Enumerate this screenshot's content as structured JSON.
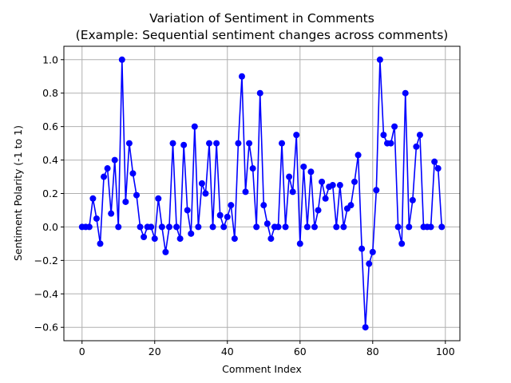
{
  "chart_data": {
    "type": "line",
    "title": "Variation of Sentiment in Comments",
    "subtitle": "(Example: Sequential sentiment changes across comments)",
    "xlabel": "Comment Index",
    "ylabel": "Sentiment Polarity (-1 to 1)",
    "xlim": [
      -5,
      104
    ],
    "ylim": [
      -0.68,
      1.08
    ],
    "xticks": [
      0,
      20,
      40,
      60,
      80,
      100
    ],
    "yticks": [
      -0.6,
      -0.4,
      -0.2,
      0.0,
      0.2,
      0.4,
      0.6,
      0.8,
      1.0
    ],
    "ytick_labels": [
      "−0.6",
      "−0.4",
      "−0.2",
      "0.0",
      "0.2",
      "0.4",
      "0.6",
      "0.8",
      "1.0"
    ],
    "grid": true,
    "color": "#0000ff",
    "marker": "circle",
    "series": [
      {
        "x": [
          0,
          1,
          2,
          3,
          4,
          5,
          6,
          7,
          8,
          9,
          10,
          11,
          12,
          13,
          14,
          15,
          16,
          17,
          18,
          19,
          20,
          21,
          22,
          23,
          24,
          25,
          26,
          27,
          28,
          29,
          30,
          31,
          32,
          33,
          34,
          35,
          36,
          37,
          38,
          39,
          40,
          41,
          42,
          43,
          44,
          45,
          46,
          47,
          48,
          49,
          50,
          51,
          52,
          53,
          54,
          55,
          56,
          57,
          58,
          59,
          60,
          61,
          62,
          63,
          64,
          65,
          66,
          67,
          68,
          69,
          70,
          71,
          72,
          73,
          74,
          75,
          76,
          77,
          78,
          79,
          80,
          81,
          82,
          83,
          84,
          85,
          86,
          87,
          88,
          89,
          90,
          91,
          92,
          93,
          94,
          95,
          96,
          97,
          98,
          99
        ],
        "values": [
          0,
          0,
          0,
          0.17,
          0.05,
          -0.1,
          0.3,
          0.35,
          0.08,
          0.4,
          0,
          1.0,
          0.15,
          0.5,
          0.32,
          0.19,
          0,
          -0.06,
          0,
          0,
          -0.07,
          0.17,
          0,
          -0.15,
          0,
          0.5,
          0,
          -0.07,
          0.49,
          0.1,
          -0.04,
          0.6,
          0,
          0.26,
          0.2,
          0.5,
          0,
          0.5,
          0.07,
          0,
          0.06,
          0.13,
          -0.07,
          0.5,
          0.9,
          0.21,
          0.5,
          0.35,
          0,
          0.8,
          0.13,
          0.02,
          -0.07,
          0,
          0,
          0.5,
          0,
          0.3,
          0.21,
          0.55,
          -0.1,
          0.36,
          0,
          0.33,
          0,
          0.1,
          0.27,
          0.17,
          0.24,
          0.25,
          0,
          0.25,
          0,
          0.11,
          0.13,
          0.27,
          0.43,
          -0.13,
          -0.6,
          -0.22,
          -0.15,
          0.22,
          1.0,
          0.55,
          0.5,
          0.5,
          0.6,
          0,
          -0.1,
          0.8,
          0,
          0.16,
          0.48,
          0.55,
          0,
          0,
          0,
          0.39,
          0.35,
          0
        ]
      }
    ]
  }
}
